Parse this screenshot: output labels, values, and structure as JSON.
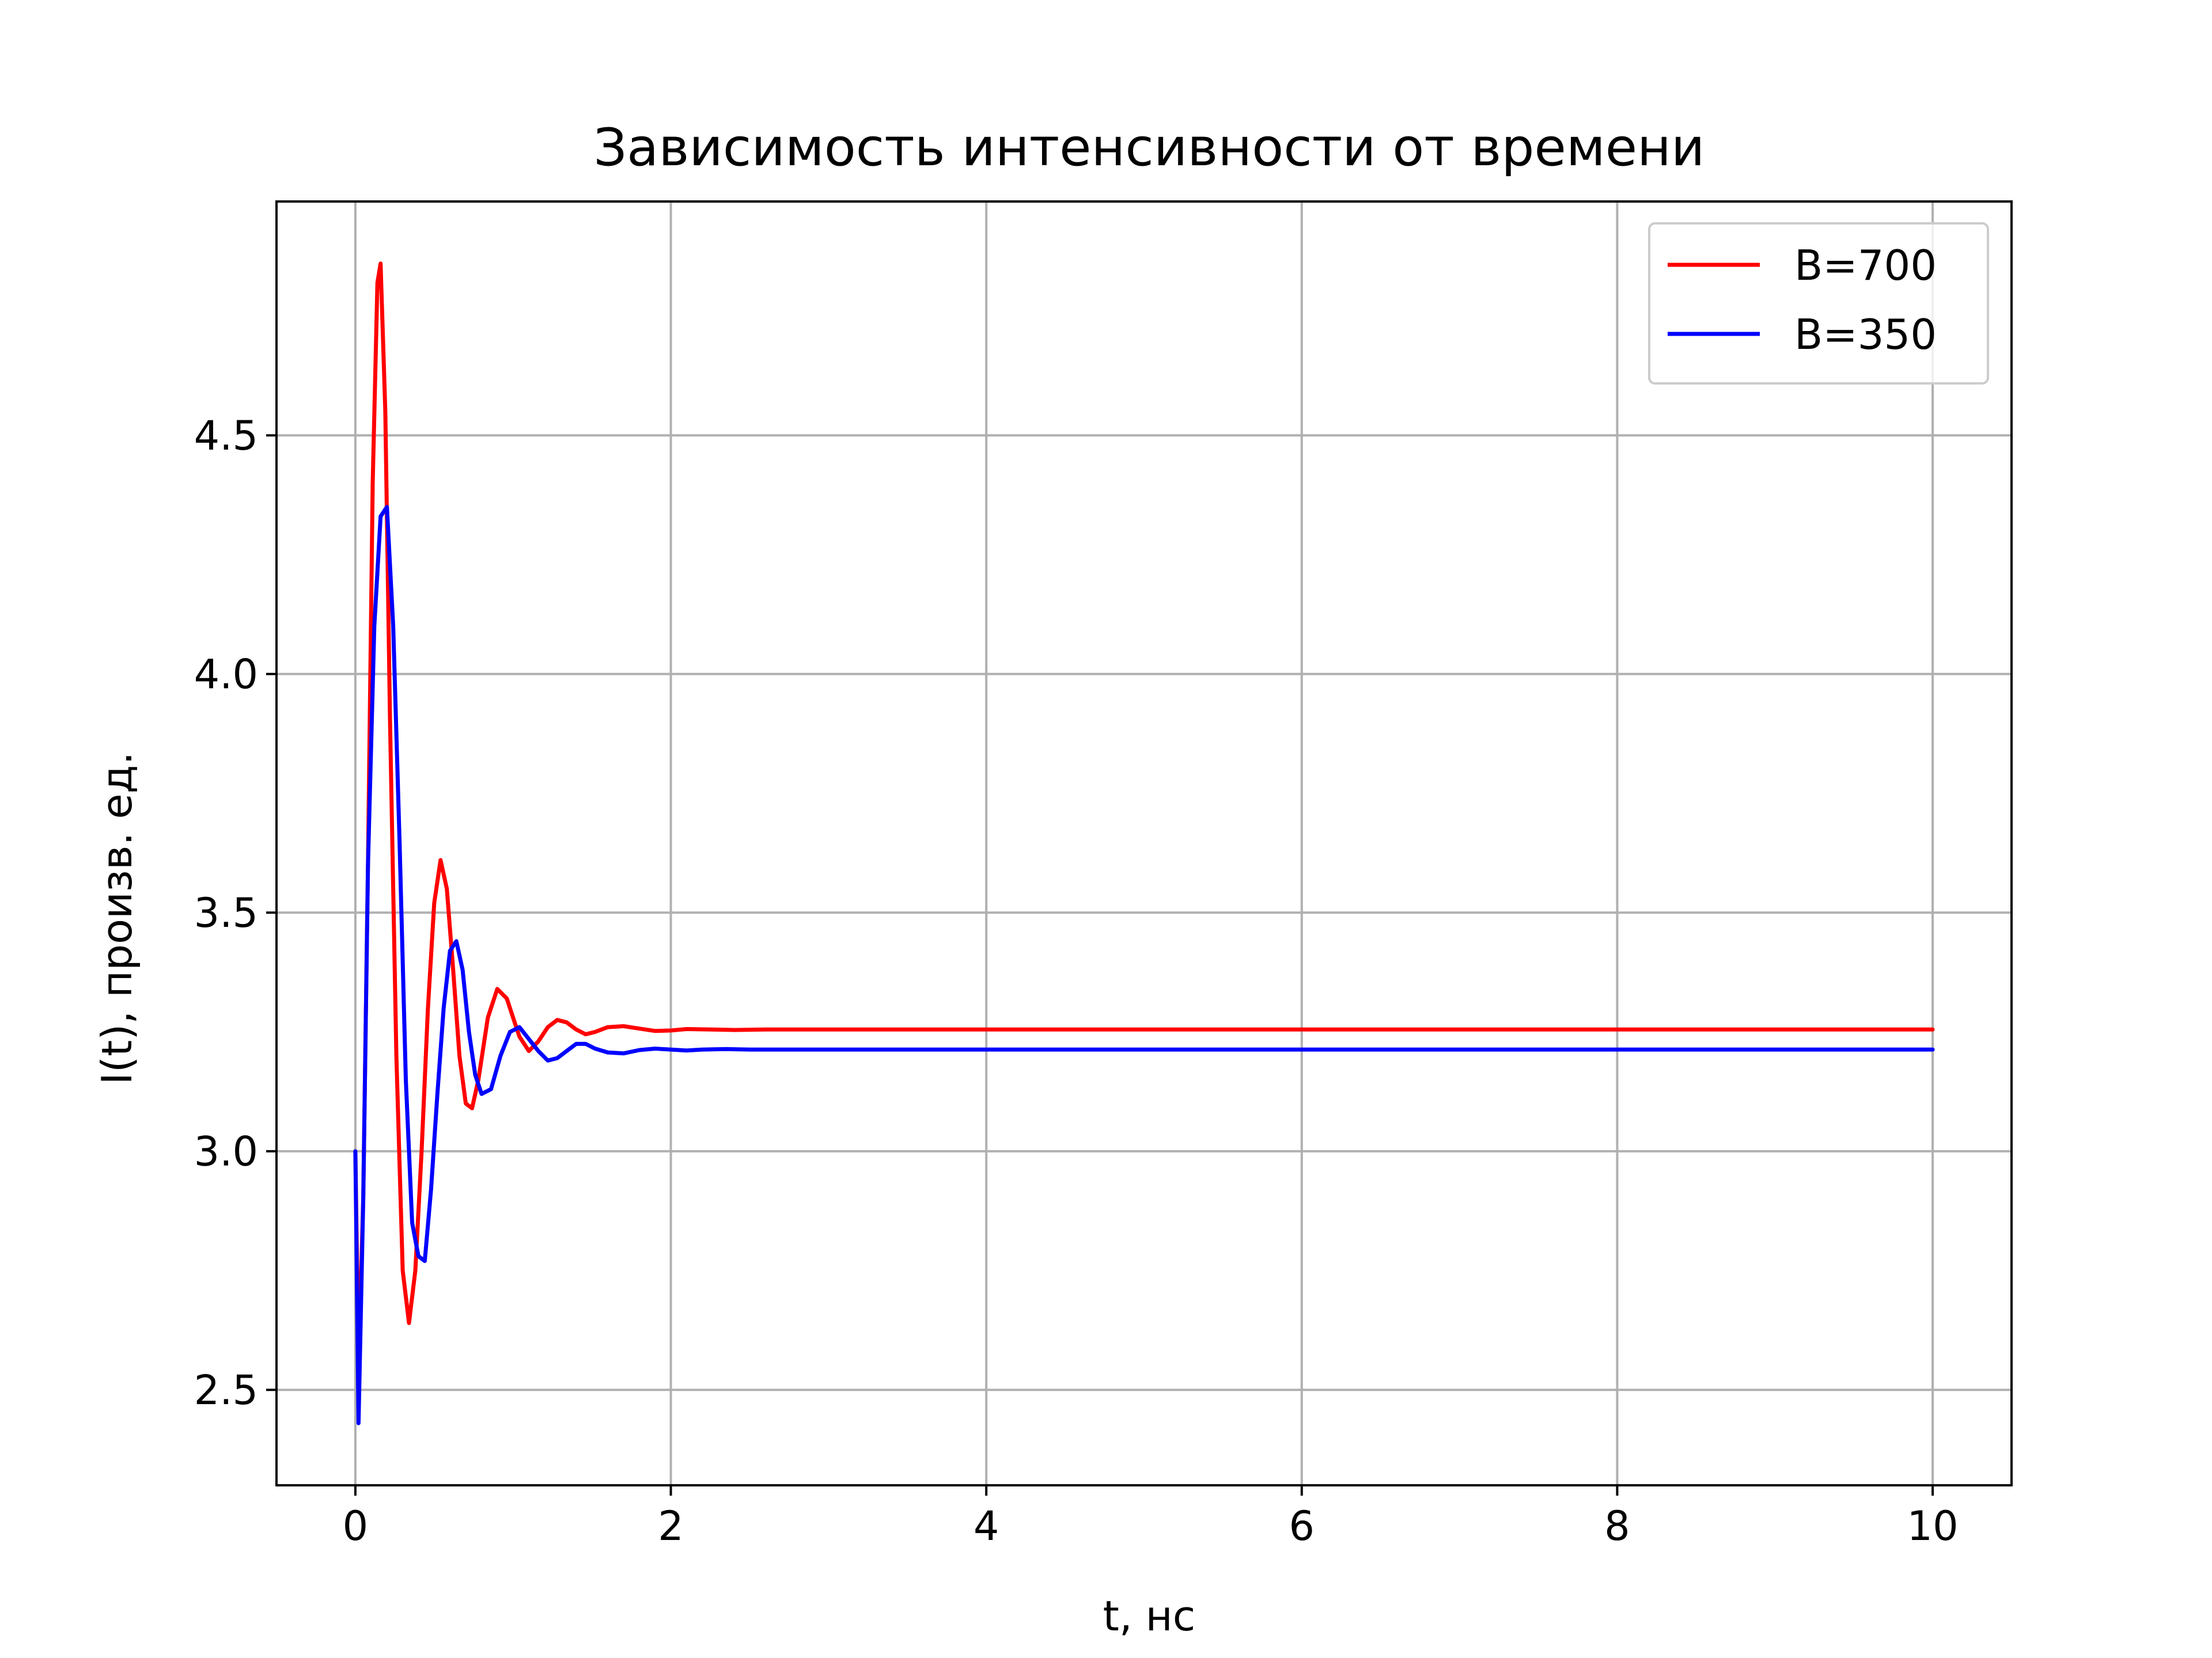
{
  "chart_data": {
    "type": "line",
    "title": "Зависимость интенсивности от времени",
    "xlabel": "t, нс",
    "ylabel": "I(t), произв. ед.",
    "xlim": [
      -0.5,
      10.5
    ],
    "ylim": [
      2.3,
      4.99
    ],
    "xticks": [
      0,
      2,
      4,
      6,
      8,
      10
    ],
    "xtick_labels": [
      "0",
      "2",
      "4",
      "6",
      "8",
      "10"
    ],
    "yticks": [
      2.5,
      3.0,
      3.5,
      4.0,
      4.5
    ],
    "ytick_labels": [
      "2.5",
      "3.0",
      "3.5",
      "4.0",
      "4.5"
    ],
    "grid": true,
    "legend_position": "top-right",
    "series": [
      {
        "name": "B=700",
        "color": "#ff0000",
        "x": [
          0,
          0.02,
          0.05,
          0.08,
          0.11,
          0.14,
          0.16,
          0.19,
          0.22,
          0.26,
          0.3,
          0.34,
          0.38,
          0.42,
          0.46,
          0.5,
          0.54,
          0.58,
          0.62,
          0.66,
          0.7,
          0.74,
          0.78,
          0.84,
          0.9,
          0.96,
          1.0,
          1.04,
          1.1,
          1.16,
          1.22,
          1.28,
          1.34,
          1.4,
          1.46,
          1.52,
          1.6,
          1.7,
          1.8,
          1.9,
          2.0,
          2.1,
          2.25,
          2.4,
          2.6,
          2.8,
          3.0,
          4.0,
          5.0,
          6.0,
          7.0,
          8.0,
          9.0,
          10.0
        ],
        "y": [
          3.0,
          2.55,
          2.9,
          3.6,
          4.4,
          4.82,
          4.86,
          4.55,
          3.9,
          3.2,
          2.75,
          2.64,
          2.75,
          3.0,
          3.3,
          3.52,
          3.61,
          3.55,
          3.38,
          3.2,
          3.1,
          3.09,
          3.15,
          3.28,
          3.34,
          3.32,
          3.28,
          3.24,
          3.21,
          3.23,
          3.26,
          3.275,
          3.27,
          3.255,
          3.245,
          3.25,
          3.26,
          3.262,
          3.257,
          3.252,
          3.253,
          3.256,
          3.255,
          3.254,
          3.255,
          3.255,
          3.255,
          3.255,
          3.255,
          3.255,
          3.255,
          3.255,
          3.255,
          3.255
        ]
      },
      {
        "name": "B=350",
        "color": "#0000ff",
        "x": [
          0,
          0.02,
          0.05,
          0.08,
          0.12,
          0.16,
          0.2,
          0.24,
          0.28,
          0.32,
          0.36,
          0.4,
          0.44,
          0.48,
          0.52,
          0.56,
          0.6,
          0.64,
          0.68,
          0.72,
          0.76,
          0.8,
          0.86,
          0.92,
          0.98,
          1.04,
          1.1,
          1.16,
          1.22,
          1.28,
          1.34,
          1.4,
          1.46,
          1.52,
          1.6,
          1.7,
          1.8,
          1.9,
          2.0,
          2.1,
          2.2,
          2.35,
          2.5,
          2.7,
          3.0,
          4.0,
          5.0,
          6.0,
          7.0,
          8.0,
          9.0,
          10.0
        ],
        "y": [
          3.0,
          2.43,
          2.9,
          3.6,
          4.1,
          4.33,
          4.35,
          4.1,
          3.65,
          3.15,
          2.85,
          2.78,
          2.77,
          2.92,
          3.12,
          3.3,
          3.42,
          3.44,
          3.38,
          3.25,
          3.16,
          3.12,
          3.13,
          3.2,
          3.25,
          3.26,
          3.235,
          3.21,
          3.19,
          3.195,
          3.21,
          3.225,
          3.225,
          3.215,
          3.207,
          3.205,
          3.212,
          3.215,
          3.213,
          3.211,
          3.213,
          3.214,
          3.213,
          3.213,
          3.213,
          3.213,
          3.213,
          3.213,
          3.213,
          3.213,
          3.213,
          3.213
        ]
      }
    ]
  }
}
